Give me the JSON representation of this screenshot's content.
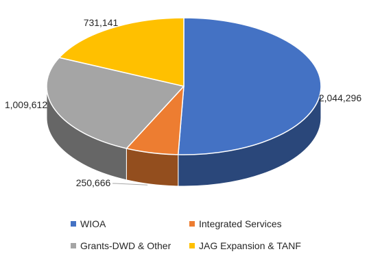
{
  "chart_data": {
    "type": "pie",
    "style": "3d",
    "title": "",
    "categories": [
      "WIOA",
      "Integrated Services",
      "Grants-DWD & Other",
      "JAG Expansion & TANF"
    ],
    "values": [
      2044296,
      250666,
      1009612,
      731141
    ],
    "data_labels": [
      "2,044,296",
      "250,666",
      "1,009,612",
      "731,141"
    ],
    "colors": [
      "#4472C4",
      "#ED7D31",
      "#A5A5A5",
      "#FFC000"
    ],
    "legend_position": "bottom"
  }
}
